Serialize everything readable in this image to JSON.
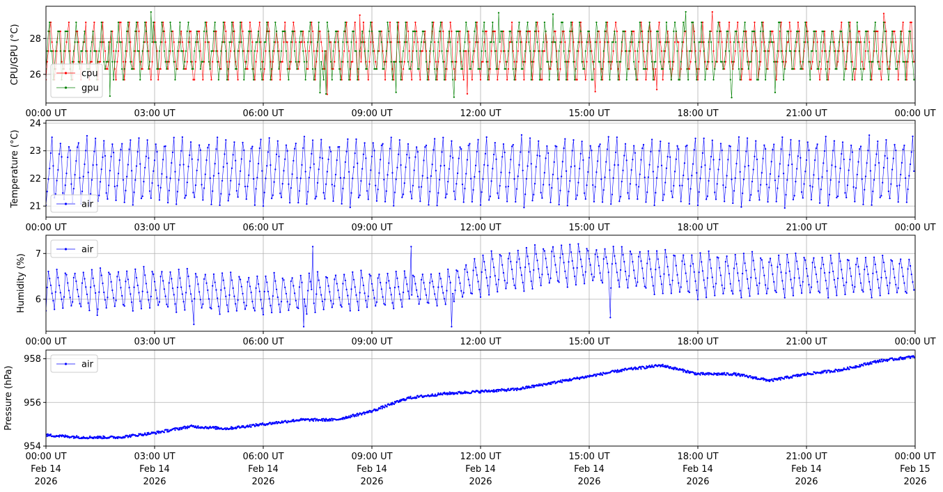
{
  "figure": {
    "type": "multi-panel time series"
  },
  "colors": {
    "cpu": "#ff0000",
    "gpu": "#008000",
    "air": "#0000ff",
    "grid": "#b0b0b0"
  },
  "x_axis": {
    "tick_labels": [
      "00:00 UT",
      "03:00 UT",
      "06:00 UT",
      "09:00 UT",
      "12:00 UT",
      "15:00 UT",
      "18:00 UT",
      "21:00 UT",
      "00:00 UT"
    ],
    "date_line": [
      "Feb 14",
      "Feb 14",
      "Feb 14",
      "Feb 14",
      "Feb 14",
      "Feb 14",
      "Feb 14",
      "Feb 14",
      "Feb 15"
    ],
    "year_line": [
      "2026",
      "2026",
      "2026",
      "2026",
      "2026",
      "2026",
      "2026",
      "2026",
      "2026"
    ]
  },
  "chart_data": [
    {
      "type": "line",
      "ylabel": "CPU/GPU (°C)",
      "xlim": [
        "2026-02-14 00:00 UT",
        "2026-02-15 00:00 UT"
      ],
      "ylim": [
        24.4,
        29.8
      ],
      "yticks": [
        26,
        28
      ],
      "ytick_labels": [
        "26",
        "28"
      ],
      "grid": true,
      "legend_loc": "lower-left",
      "series": [
        {
          "name": "cpu",
          "color": "red",
          "min": 24.6,
          "max": 29.5,
          "typical_range": [
            25.7,
            28.9
          ],
          "pattern": "step oscillation, ~100 cycles/day"
        },
        {
          "name": "gpu",
          "color": "green",
          "min": 24.6,
          "max": 29.5,
          "typical_range": [
            25.7,
            28.9
          ],
          "pattern": "step oscillation, ~100 cycles/day"
        }
      ]
    },
    {
      "type": "line",
      "ylabel": "Temperature (°C)",
      "xlim": [
        "2026-02-14 00:00 UT",
        "2026-02-15 00:00 UT"
      ],
      "ylim": [
        20.6,
        24.1
      ],
      "yticks": [
        21,
        22,
        23,
        24
      ],
      "ytick_labels": [
        "21",
        "22",
        "23",
        "24"
      ],
      "grid": true,
      "legend_loc": "lower-left",
      "series": [
        {
          "name": "air",
          "color": "blue",
          "min": 20.7,
          "max": 23.9,
          "typical_range": [
            21.0,
            23.6
          ],
          "pattern": "sawtooth, ~100 cycles/day"
        }
      ]
    },
    {
      "type": "line",
      "ylabel": "Humidity (%)",
      "xlim": [
        "2026-02-14 00:00 UT",
        "2026-02-15 00:00 UT"
      ],
      "ylim": [
        5.3,
        7.4
      ],
      "yticks": [
        6,
        7
      ],
      "ytick_labels": [
        "6",
        "7"
      ],
      "grid": true,
      "legend_loc": "upper-left",
      "series": [
        {
          "name": "air",
          "color": "blue",
          "pattern": "oscillation, ~100 cycles/day",
          "envelope": {
            "x": [
              "00:00",
              "03:00",
              "06:00",
              "09:00",
              "11:00",
              "12:00",
              "14:00",
              "15:00",
              "18:00",
              "21:00",
              "24:00"
            ],
            "low": [
              5.75,
              5.75,
              5.65,
              5.75,
              5.85,
              6.05,
              6.25,
              6.3,
              6.0,
              6.05,
              6.05
            ],
            "high": [
              6.65,
              6.7,
              6.55,
              6.65,
              6.6,
              7.0,
              7.25,
              7.2,
              7.05,
              7.0,
              6.95
            ]
          },
          "outliers": [
            {
              "x": "01:25",
              "y": 5.65
            },
            {
              "x": "04:05",
              "y": 5.45
            },
            {
              "x": "07:07",
              "y": 5.4
            },
            {
              "x": "07:22",
              "y": 7.15
            },
            {
              "x": "10:05",
              "y": 7.15
            },
            {
              "x": "11:12",
              "y": 5.4
            },
            {
              "x": "15:35",
              "y": 5.6
            }
          ]
        }
      ]
    },
    {
      "type": "line",
      "ylabel": "Pressure (hPa)",
      "xlim": [
        "2026-02-14 00:00 UT",
        "2026-02-15 00:00 UT"
      ],
      "ylim": [
        954.0,
        958.4
      ],
      "yticks": [
        954,
        956,
        958
      ],
      "ytick_labels": [
        "954",
        "956",
        "958"
      ],
      "grid": true,
      "legend_loc": "upper-left",
      "series": [
        {
          "name": "air",
          "color": "blue",
          "x": [
            "00:00",
            "01:00",
            "02:00",
            "03:00",
            "04:00",
            "05:00",
            "06:00",
            "07:00",
            "08:00",
            "09:00",
            "10:00",
            "11:00",
            "12:00",
            "13:00",
            "14:00",
            "15:00",
            "16:00",
            "17:00",
            "18:00",
            "19:00",
            "20:00",
            "21:00",
            "22:00",
            "23:00",
            "24:00"
          ],
          "y": [
            954.5,
            954.4,
            954.4,
            954.6,
            954.9,
            954.8,
            955.0,
            955.2,
            955.2,
            955.6,
            956.2,
            956.4,
            956.5,
            956.6,
            956.9,
            957.2,
            957.5,
            957.7,
            957.3,
            957.3,
            957.0,
            957.3,
            957.5,
            957.9,
            958.1
          ]
        }
      ]
    }
  ]
}
